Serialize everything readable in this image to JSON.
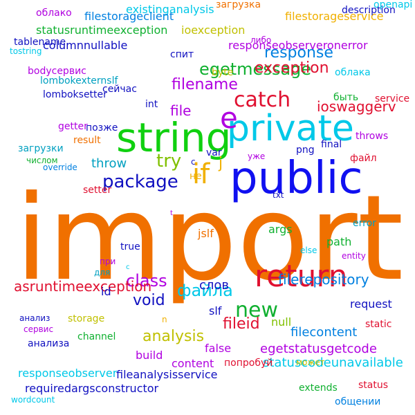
{
  "words": [
    {
      "text": "import",
      "color": "#f07000",
      "rotated": false
    },
    {
      "text": "public",
      "color": "#1010f0",
      "rotated": false
    },
    {
      "text": "string",
      "color": "#10d010",
      "rotated": false
    },
    {
      "text": "private",
      "color": "#00c8e8",
      "rotated": false
    },
    {
      "text": "return",
      "color": "#e01030",
      "rotated": false
    },
    {
      "text": "e",
      "color": "#b000e0",
      "rotated": false
    },
    {
      "text": "if",
      "color": "#f0b000",
      "rotated": false
    },
    {
      "text": "catch",
      "color": "#e01030",
      "rotated": false
    },
    {
      "text": "package",
      "color": "#1010c0",
      "rotated": false
    },
    {
      "text": "try",
      "color": "#80c000",
      "rotated": false
    },
    {
      "text": "egetmessage",
      "color": "#10b030",
      "rotated": false
    },
    {
      "text": "filename",
      "color": "#b000e0",
      "rotated": false
    },
    {
      "text": "exception",
      "color": "#e01030",
      "rotated": false
    },
    {
      "text": "response",
      "color": "#0080e0",
      "rotated": false
    },
    {
      "text": "ioswaggerv",
      "color": "#e01030",
      "rotated": false
    },
    {
      "text": "new",
      "color": "#10b030",
      "rotated": false
    },
    {
      "text": "class",
      "color": "#b000e0",
      "rotated": false
    },
    {
      "text": "файла",
      "color": "#00c8e8",
      "rotated": false
    },
    {
      "text": "fileid",
      "color": "#e01030",
      "rotated": false
    },
    {
      "text": "analysis",
      "color": "#c0c000",
      "rotated": false
    },
    {
      "text": "void",
      "color": "#1010c0",
      "rotated": false
    },
    {
      "text": "file",
      "color": "#b000e0",
      "rotated": false
    },
    {
      "text": "throw",
      "color": "#00a0c0",
      "rotated": false
    },
    {
      "text": "j",
      "color": "#f0b000",
      "rotated": false
    },
    {
      "text": "filerepository",
      "color": "#0080e0",
      "rotated": false
    },
    {
      "text": "asruntimeexception",
      "color": "#e01030",
      "rotated": false
    },
    {
      "text": "статус",
      "color": "#c0c000",
      "rotated": false
    },
    {
      "text": "filecontent",
      "color": "#0080e0",
      "rotated": false
    },
    {
      "text": "egetstatusgetcode",
      "color": "#b000e0",
      "rotated": false
    },
    {
      "text": "statuscodeunavailable",
      "color": "#00c8e8",
      "rotated": false
    },
    {
      "text": "fileanalysisservice",
      "color": "#1010c0",
      "rotated": false
    },
    {
      "text": "requiredargsconstructor",
      "color": "#1010c0",
      "rotated": false
    },
    {
      "text": "responseobserver",
      "color": "#00c8e8",
      "rotated": false
    },
    {
      "text": "existinganalysis",
      "color": "#00c8e8",
      "rotated": false
    },
    {
      "text": "filestorageclient",
      "color": "#0080e0",
      "rotated": false
    },
    {
      "text": "statusruntimeexception",
      "color": "#10b030",
      "rotated": false
    },
    {
      "text": "columnnullable",
      "color": "#1010c0",
      "rotated": false
    },
    {
      "text": "lombokexternslf",
      "color": "#00a0c0",
      "rotated": false
    },
    {
      "text": "lomboksetter",
      "color": "#1010c0",
      "rotated": false
    },
    {
      "text": "responseobserveronerror",
      "color": "#b000e0",
      "rotated": false
    },
    {
      "text": "filestorageservice",
      "color": "#f0b000",
      "rotated": false
    },
    {
      "text": "ioexception",
      "color": "#c0c000",
      "rotated": false
    },
    {
      "text": "tablename",
      "color": "#1010c0",
      "rotated": false
    },
    {
      "text": "tostring",
      "color": "#00c8e8",
      "rotated": false
    },
    {
      "text": "bodyсервис",
      "color": "#b000e0",
      "rotated": false
    },
    {
      "text": "облако",
      "color": "#b000e0",
      "rotated": false
    },
    {
      "text": "description",
      "color": "#1010c0",
      "rotated": false
    },
    {
      "text": "openapi",
      "color": "#00c8e8",
      "rotated": false
    },
    {
      "text": "загрузка",
      "color": "#f07000",
      "rotated": false
    },
    {
      "text": "либо",
      "color": "#b000e0",
      "rotated": false
    },
    {
      "text": "облака",
      "color": "#00c8e8",
      "rotated": false
    },
    {
      "text": "byte",
      "color": "#c0c000",
      "rotated": false
    },
    {
      "text": "спит",
      "color": "#1010c0",
      "rotated": false
    },
    {
      "text": "сейчас",
      "color": "#1010c0",
      "rotated": false
    },
    {
      "text": "int",
      "color": "#1010c0",
      "rotated": false
    },
    {
      "text": "позже",
      "color": "#1010c0",
      "rotated": false
    },
    {
      "text": "getter",
      "color": "#b000e0",
      "rotated": false
    },
    {
      "text": "result",
      "color": "#f07000",
      "rotated": false
    },
    {
      "text": "загрузки",
      "color": "#00a0c0",
      "rotated": false
    },
    {
      "text": "числом",
      "color": "#10b030",
      "rotated": false
    },
    {
      "text": "override",
      "color": "#0080e0",
      "rotated": false
    },
    {
      "text": "var",
      "color": "#1010c0",
      "rotated": false
    },
    {
      "text": "с",
      "color": "#1010c0",
      "rotated": false
    },
    {
      "text": "не",
      "color": "#f0b000",
      "rotated": false
    },
    {
      "text": "setter",
      "color": "#e01030",
      "rotated": false
    },
    {
      "text": "png",
      "color": "#1010c0",
      "rotated": false
    },
    {
      "text": "уже",
      "color": "#b000e0",
      "rotated": false
    },
    {
      "text": "final",
      "color": "#1010c0",
      "rotated": false
    },
    {
      "text": "throws",
      "color": "#b000e0",
      "rotated": false
    },
    {
      "text": "файл",
      "color": "#e01030",
      "rotated": false
    },
    {
      "text": "быть",
      "color": "#10b030",
      "rotated": false
    },
    {
      "text": "service",
      "color": "#e01030",
      "rotated": false
    },
    {
      "text": "jslf",
      "color": "#f07000",
      "rotated": false
    },
    {
      "text": "args",
      "color": "#10b030",
      "rotated": false
    },
    {
      "text": "txt",
      "color": "#1010c0",
      "rotated": false
    },
    {
      "text": "error",
      "color": "#00a0c0",
      "rotated": false
    },
    {
      "text": "path",
      "color": "#10b030",
      "rotated": false
    },
    {
      "text": "else",
      "color": "#00c8e8",
      "rotated": false
    },
    {
      "text": "entity",
      "color": "#b000e0",
      "rotated": false
    },
    {
      "text": "true",
      "color": "#1010c0",
      "rotated": false
    },
    {
      "text": "при",
      "color": "#b000e0",
      "rotated": false
    },
    {
      "text": "для",
      "color": "#00a0c0",
      "rotated": false
    },
    {
      "text": "id",
      "color": "#1010c0",
      "rotated": false
    },
    {
      "text": "слов",
      "color": "#1010c0",
      "rotated": false
    },
    {
      "text": "request",
      "color": "#1010c0",
      "rotated": false
    },
    {
      "text": "slf",
      "color": "#1010c0",
      "rotated": false
    },
    {
      "text": "null",
      "color": "#80c000",
      "rotated": false
    },
    {
      "text": "анализ",
      "color": "#1010c0",
      "rotated": false
    },
    {
      "text": "сервис",
      "color": "#b000e0",
      "rotated": false
    },
    {
      "text": "storage",
      "color": "#c0c000",
      "rotated": false
    },
    {
      "text": "static",
      "color": "#e01030",
      "rotated": false
    },
    {
      "text": "анализа",
      "color": "#1010c0",
      "rotated": false
    },
    {
      "text": "channel",
      "color": "#10b030",
      "rotated": false
    },
    {
      "text": "build",
      "color": "#b000e0",
      "rotated": false
    },
    {
      "text": "false",
      "color": "#b000e0",
      "rotated": false
    },
    {
      "text": "content",
      "color": "#b000e0",
      "rotated": false
    },
    {
      "text": "попробуй",
      "color": "#e01030",
      "rotated": false
    },
    {
      "text": "может",
      "color": "#c0c000",
      "rotated": false
    },
    {
      "text": "extends",
      "color": "#10b030",
      "rotated": false
    },
    {
      "text": "status",
      "color": "#e01030",
      "rotated": false
    },
    {
      "text": "общении",
      "color": "#0080e0",
      "rotated": false
    },
    {
      "text": "wordcount",
      "color": "#00c8e8",
      "rotated": false
    },
    {
      "text": "t",
      "color": "#b000e0",
      "rotated": false
    },
    {
      "text": "c",
      "color": "#00c8e8",
      "rotated": false
    },
    {
      "text": "n",
      "color": "#f0b000",
      "rotated": false
    }
  ]
}
